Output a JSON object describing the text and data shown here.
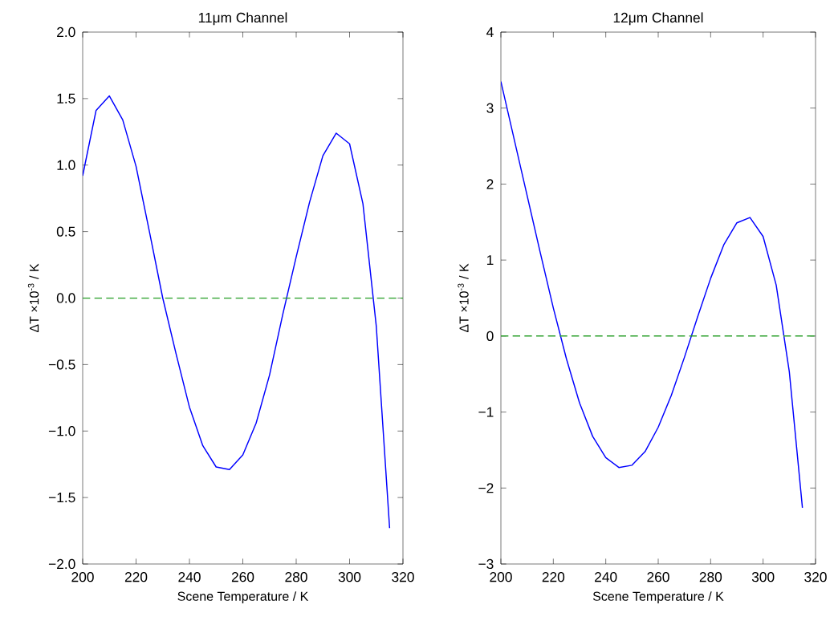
{
  "chart_data": [
    {
      "type": "line",
      "title": "11μm Channel",
      "xlabel": "Scene Temperature / K",
      "ylabel": "ΔT ×10$^{-3}$ / K",
      "x": [
        200,
        205,
        210,
        215,
        220,
        225,
        230,
        235,
        240,
        245,
        250,
        255,
        260,
        265,
        270,
        275,
        280,
        285,
        290,
        295,
        300,
        305,
        310,
        315
      ],
      "series": [
        {
          "color": "#0000ff",
          "values": [
            0.92,
            1.41,
            1.52,
            1.34,
            0.99,
            0.5,
            0.0,
            -0.42,
            -0.82,
            -1.11,
            -1.27,
            -1.29,
            -1.18,
            -0.94,
            -0.58,
            -0.12,
            0.31,
            0.72,
            1.07,
            1.24,
            1.16,
            0.71,
            -0.21,
            -1.73
          ]
        }
      ],
      "xlim": [
        200,
        320
      ],
      "xticks": [
        200,
        220,
        240,
        260,
        280,
        300,
        320
      ],
      "ylim": [
        -2.0,
        2.0
      ],
      "yticks": [
        {
          "value": -2.0,
          "label": "−2.0"
        },
        {
          "value": -1.5,
          "label": "−1.5"
        },
        {
          "value": -1.0,
          "label": "−1.0"
        },
        {
          "value": -0.5,
          "label": "−0.5"
        },
        {
          "value": 0.0,
          "label": "0.0"
        },
        {
          "value": 0.5,
          "label": "0.5"
        },
        {
          "value": 1.0,
          "label": "1.0"
        },
        {
          "value": 1.5,
          "label": "1.5"
        },
        {
          "value": 2.0,
          "label": "2.0"
        }
      ],
      "ref_lines": [
        {
          "axis": "y",
          "value": 0,
          "color": "#2ca02c",
          "line_style": "dashed"
        }
      ]
    },
    {
      "type": "line",
      "title": "12μm Channel",
      "xlabel": "Scene Temperature / K",
      "ylabel": "ΔT ×10$^{-3}$ / K",
      "x": [
        200,
        205,
        210,
        215,
        220,
        225,
        230,
        235,
        240,
        245,
        250,
        255,
        260,
        265,
        270,
        275,
        280,
        285,
        290,
        295,
        300,
        305,
        310,
        315
      ],
      "series": [
        {
          "color": "#0000ff",
          "values": [
            3.35,
            2.6,
            1.85,
            1.1,
            0.37,
            -0.3,
            -0.88,
            -1.32,
            -1.6,
            -1.73,
            -1.7,
            -1.52,
            -1.2,
            -0.78,
            -0.28,
            0.25,
            0.76,
            1.2,
            1.49,
            1.56,
            1.31,
            0.67,
            -0.47,
            -2.26
          ]
        }
      ],
      "xlim": [
        200,
        320
      ],
      "xticks": [
        200,
        220,
        240,
        260,
        280,
        300,
        320
      ],
      "ylim": [
        -3,
        4
      ],
      "yticks": [
        {
          "value": -3,
          "label": "−3"
        },
        {
          "value": -2,
          "label": "−2"
        },
        {
          "value": -1,
          "label": "−1"
        },
        0,
        1,
        2,
        3,
        4
      ],
      "ref_lines": [
        {
          "axis": "y",
          "value": 0,
          "color": "#2ca02c",
          "line_style": "dashed"
        }
      ]
    }
  ]
}
